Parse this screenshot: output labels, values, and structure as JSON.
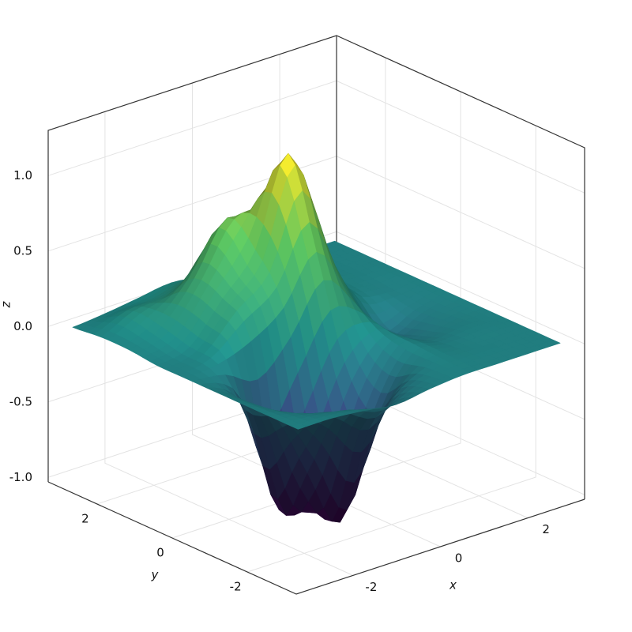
{
  "chart_data": {
    "type": "surface",
    "x": [
      -3,
      -2.25,
      -1.5,
      -0.75,
      0,
      0.75,
      1.5,
      2.25,
      3
    ],
    "y": [
      3,
      2.25,
      1.5,
      0.75,
      0,
      -0.75,
      -1.5,
      -2.25,
      -3
    ],
    "z": [
      [
        0,
        0.02,
        0.05,
        0.08,
        0.05,
        0.02,
        0,
        0,
        0
      ],
      [
        0.02,
        0.12,
        0.15,
        0.25,
        0.2,
        0.08,
        0.02,
        0,
        0
      ],
      [
        0.02,
        0.1,
        0.35,
        0.68,
        0.5,
        0.25,
        0.05,
        0,
        0
      ],
      [
        0,
        0.05,
        0.3,
        0.55,
        1.12,
        0.45,
        0.05,
        -0.02,
        0
      ],
      [
        0,
        0.02,
        0.1,
        0.25,
        0.55,
        0.2,
        -0.12,
        -0.05,
        0
      ],
      [
        0,
        -0.2,
        -0.93,
        -0.55,
        -0.1,
        0.05,
        -0.08,
        -0.03,
        0
      ],
      [
        0,
        -0.15,
        -0.6,
        -1.0,
        -0.35,
        0,
        -0.02,
        0,
        0
      ],
      [
        0,
        -0.05,
        -0.15,
        -0.3,
        -0.1,
        0,
        0,
        0,
        0
      ],
      [
        0,
        0,
        -0.02,
        -0.05,
        -0.02,
        0,
        0,
        0,
        0
      ]
    ],
    "xlim": [
      -3.3,
      3.3
    ],
    "ylim": [
      -3.3,
      3.3
    ],
    "zlim": [
      -1.03,
      1.3
    ],
    "xticks": [
      -2,
      0,
      2
    ],
    "yticks": [
      -2,
      0,
      2
    ],
    "zticks": [
      {
        "value": -1,
        "label": "-1.0"
      },
      -0.5,
      {
        "value": 0,
        "label": "0.0"
      },
      0.5,
      {
        "value": 1,
        "label": "1.0"
      }
    ],
    "xlabel": "x",
    "ylabel": "y",
    "zlabel": "z",
    "colormap": [
      "#440154",
      "#3b528b",
      "#21918c",
      "#5ec962",
      "#fde725"
    ],
    "grid": true
  }
}
